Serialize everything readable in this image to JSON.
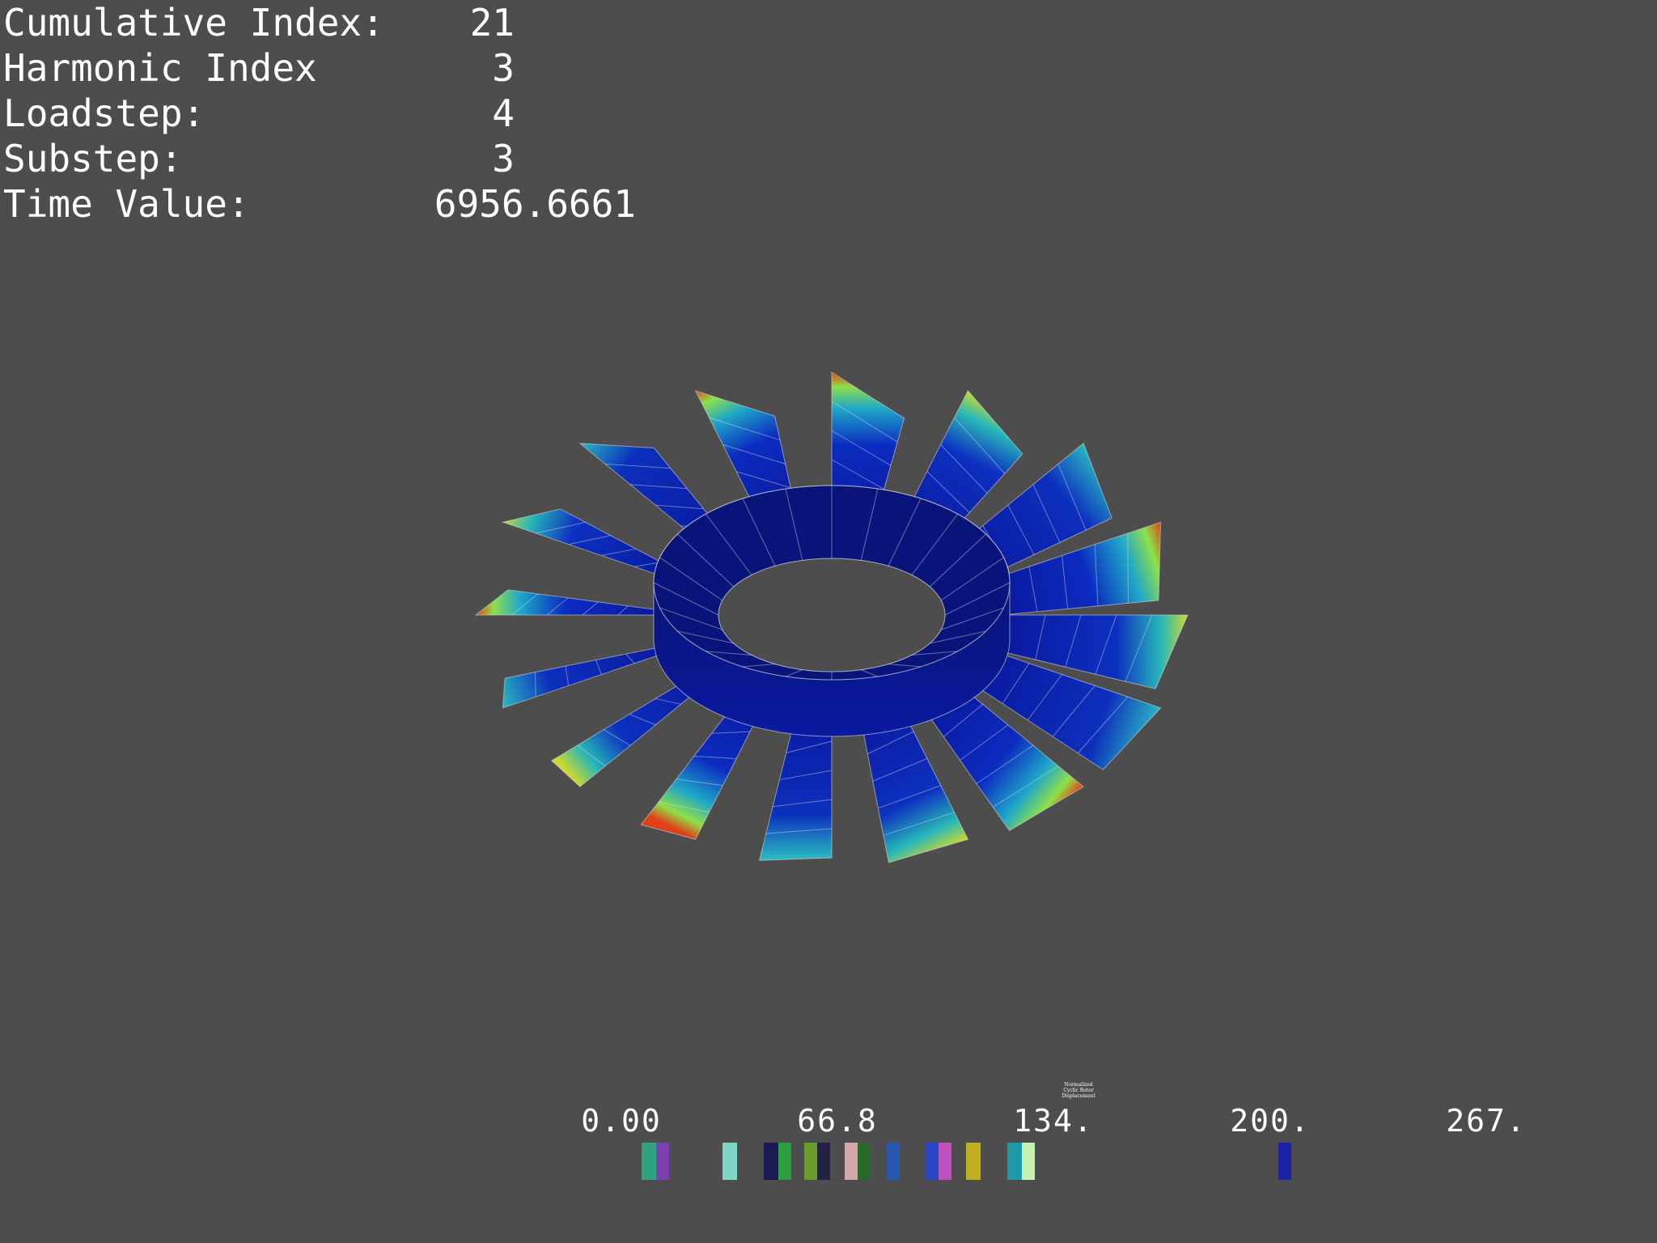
{
  "info": [
    {
      "label": "Cumulative Index:",
      "value": "21"
    },
    {
      "label": "Harmonic Index",
      "value": "3"
    },
    {
      "label": "Loadstep:",
      "value": "4"
    },
    {
      "label": "Substep:",
      "value": "3"
    },
    {
      "label": "Time Value:",
      "value": "6956.6661"
    }
  ],
  "scalar_bar": {
    "title": "Normalized Cyclic Rotor Displacement",
    "labels": [
      "0.00",
      "66.8",
      "134.",
      "200.",
      "267."
    ],
    "range": [
      0.0,
      267.0
    ],
    "colormap": "jet (blue-cyan-green-yellow-red)"
  },
  "model": {
    "object": "bladed rotor disk",
    "blade_count": 16,
    "surface_color_low": "#0a1aa0",
    "surface_color_high": "#d41a10",
    "wireframe_color": "#e0e0e0"
  },
  "colors": {
    "background": "#4d4d4d",
    "text": "#ffffff"
  }
}
